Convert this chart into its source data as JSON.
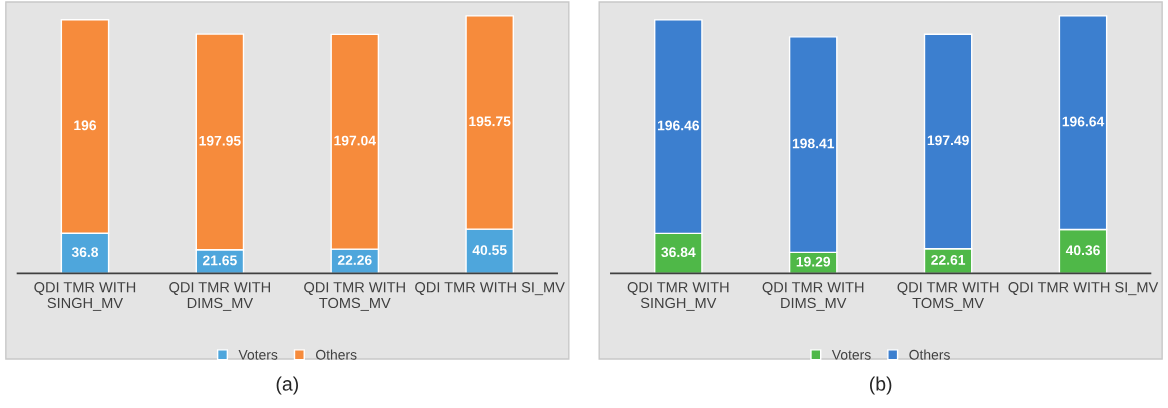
{
  "chart_data": [
    {
      "type": "bar",
      "stacked": true,
      "data_labels": true,
      "legend": "bottom",
      "grid": false,
      "annotations": [
        "(a)"
      ],
      "categories": [
        "QDI TMR WITH\nSINGH_MV",
        "QDI TMR WITH\nDIMS_MV",
        "QDI TMR WITH\nTOMS_MV",
        "QDI TMR WITH SI_MV"
      ],
      "series": [
        {
          "name": "Voters",
          "color": "#4ea6dc",
          "values": [
            36.8,
            21.65,
            22.26,
            40.55
          ]
        },
        {
          "name": "Others",
          "color": "#f68b3c",
          "values": [
            196,
            197.95,
            197.04,
            195.75
          ]
        }
      ]
    },
    {
      "type": "bar",
      "stacked": true,
      "data_labels": true,
      "legend": "bottom",
      "grid": false,
      "annotations": [
        "(b)"
      ],
      "categories": [
        "QDI TMR WITH\nSINGH_MV",
        "QDI TMR WITH\nDIMS_MV",
        "QDI TMR WITH\nTOMS_MV",
        "QDI TMR WITH SI_MV"
      ],
      "series": [
        {
          "name": "Voters",
          "color": "#4fb848",
          "values": [
            36.84,
            19.29,
            22.61,
            40.36
          ]
        },
        {
          "name": "Others",
          "color": "#3c7fcf",
          "values": [
            196.46,
            198.41,
            197.49,
            196.64
          ]
        }
      ]
    }
  ]
}
